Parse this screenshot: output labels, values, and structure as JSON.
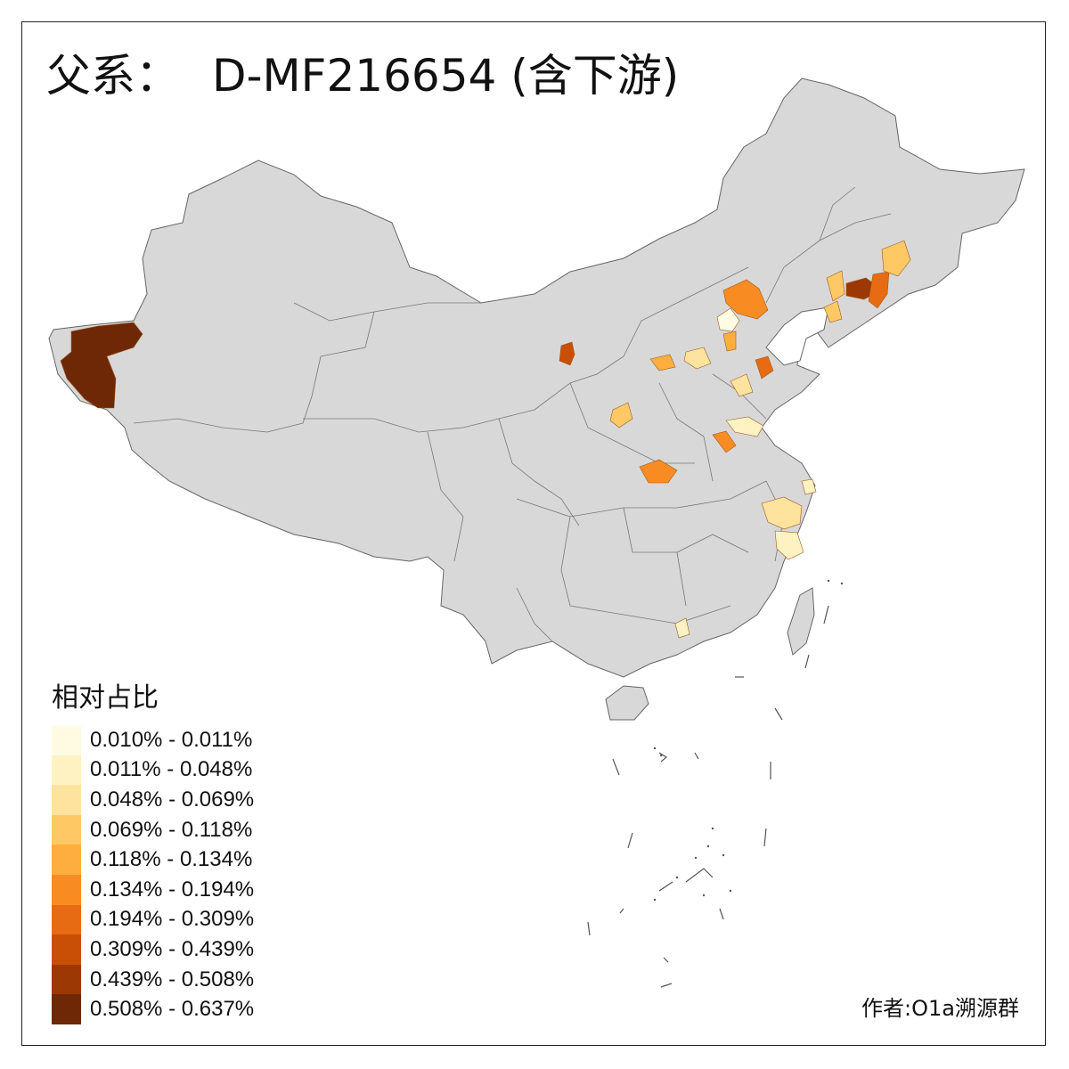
{
  "title": {
    "prefix": "父系：",
    "haplogroup": "D-MF216654 (含下游)"
  },
  "legend": {
    "title": "相对占比",
    "items": [
      {
        "label": "0.010% - 0.011%",
        "color": "#fffbe3"
      },
      {
        "label": "0.011% - 0.048%",
        "color": "#fff2c2"
      },
      {
        "label": "0.048% - 0.069%",
        "color": "#fee39e"
      },
      {
        "label": "0.069% - 0.118%",
        "color": "#fec965"
      },
      {
        "label": "0.118% - 0.134%",
        "color": "#feae3f"
      },
      {
        "label": "0.134% - 0.194%",
        "color": "#f88c22"
      },
      {
        "label": "0.194% - 0.309%",
        "color": "#e66b12"
      },
      {
        "label": "0.309% - 0.439%",
        "color": "#c84f05"
      },
      {
        "label": "0.439% - 0.508%",
        "color": "#9c3804"
      },
      {
        "label": "0.508% - 0.637%",
        "color": "#6e2806"
      }
    ]
  },
  "credit": "作者:O1a溯源群",
  "colors": {
    "base_region": "#d8d8d8",
    "border": "#666666"
  }
}
